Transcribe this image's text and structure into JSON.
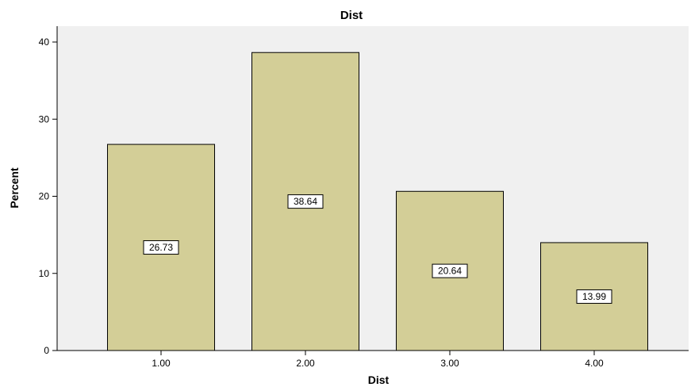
{
  "chart_data": {
    "type": "bar",
    "title": "Dist",
    "xlabel": "Dist",
    "ylabel": "Percent",
    "categories": [
      "1.00",
      "2.00",
      "3.00",
      "4.00"
    ],
    "values": [
      26.73,
      38.64,
      20.64,
      13.99
    ],
    "data_labels": [
      "26.73",
      "38.64",
      "20.64",
      "13.99"
    ],
    "ylim": [
      0,
      40
    ],
    "yticks": [
      0,
      10,
      20,
      30,
      40
    ],
    "ytick_labels": [
      "0",
      "10",
      "20",
      "30",
      "40"
    ],
    "grid": false,
    "legend": "none"
  },
  "colors": {
    "plot_background": "#f0f0f0",
    "bar_fill": "#d3ce97",
    "bar_stroke": "#000000",
    "label_background": "#ffffff"
  }
}
